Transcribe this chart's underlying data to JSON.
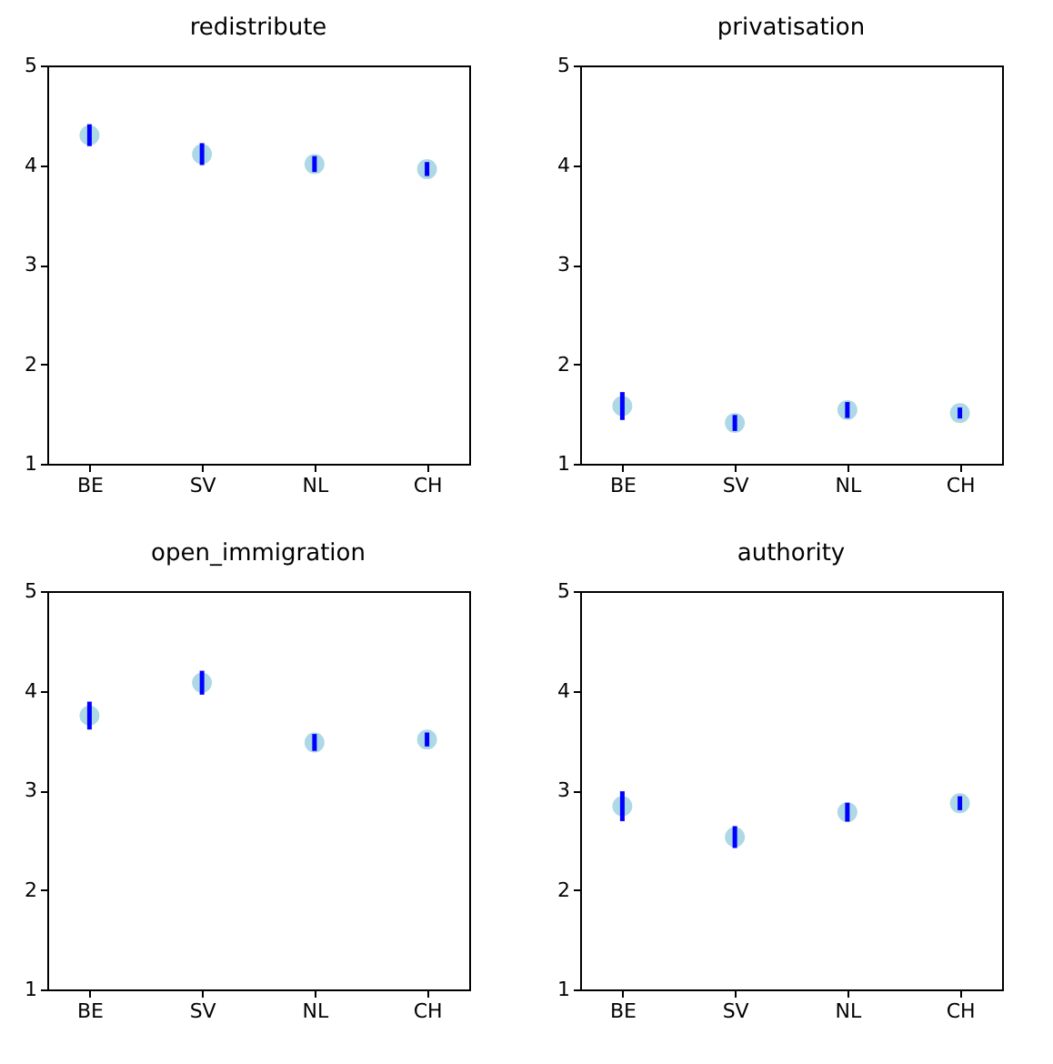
{
  "chart_data": [
    {
      "type": "scatter",
      "title": "redistribute",
      "categories": [
        "BE",
        "SV",
        "NL",
        "CH"
      ],
      "values": [
        4.3,
        4.11,
        4.01,
        3.96
      ],
      "errors": [
        0.11,
        0.11,
        0.08,
        0.07
      ],
      "color": "#add8e6",
      "ylim": [
        1,
        5
      ],
      "yticks": [
        1,
        2,
        3,
        4,
        5
      ],
      "marker": "circle"
    },
    {
      "type": "scatter",
      "title": "privatisation",
      "categories": [
        "BE",
        "SV",
        "NL",
        "CH"
      ],
      "values": [
        1.58,
        1.41,
        1.54,
        1.51
      ],
      "errors": [
        0.14,
        0.08,
        0.08,
        0.055
      ],
      "color": "#add8e6",
      "ylim": [
        1,
        5
      ],
      "yticks": [
        1,
        2,
        3,
        4,
        5
      ],
      "marker": "circle"
    },
    {
      "type": "scatter",
      "title": "open_immigration",
      "categories": [
        "BE",
        "SV",
        "NL",
        "CH"
      ],
      "values": [
        3.75,
        4.08,
        3.48,
        3.51
      ],
      "errors": [
        0.14,
        0.12,
        0.085,
        0.07
      ],
      "color": "#add8e6",
      "ylim": [
        1,
        5
      ],
      "yticks": [
        1,
        2,
        3,
        4,
        5
      ],
      "marker": "circle"
    },
    {
      "type": "scatter",
      "title": "authority",
      "categories": [
        "BE",
        "SV",
        "NL",
        "CH"
      ],
      "values": [
        2.84,
        2.53,
        2.78,
        2.87
      ],
      "errors": [
        0.15,
        0.11,
        0.095,
        0.07
      ],
      "color": "#add8e6",
      "ylim": [
        1,
        5
      ],
      "yticks": [
        1,
        2,
        3,
        4,
        5
      ],
      "marker": "circle"
    }
  ]
}
